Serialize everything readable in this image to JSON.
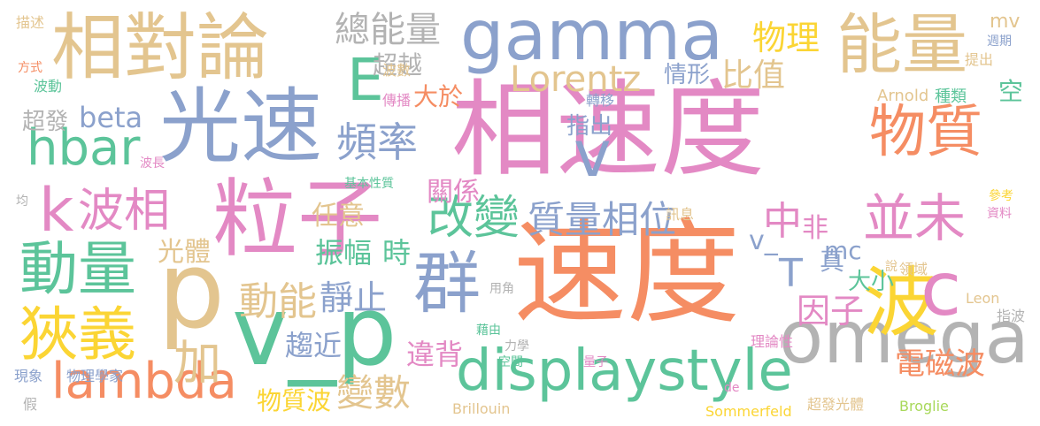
{
  "palette": {
    "orange": "#f58d63",
    "green": "#5cc49a",
    "blue": "#8ba1cc",
    "pink": "#e389c4",
    "lime": "#a8d85a",
    "yellow": "#fbd534",
    "tan": "#e3c58f",
    "gray": "#b3b3b3"
  },
  "words": [
    {
      "text": "速度",
      "color": "orange"
    },
    {
      "text": "相速度",
      "color": "pink"
    },
    {
      "text": "光速",
      "color": "blue"
    },
    {
      "text": "粒子",
      "color": "pink"
    },
    {
      "text": "相對論",
      "color": "tan"
    },
    {
      "text": "gamma",
      "color": "blue"
    },
    {
      "text": "能量",
      "color": "tan"
    },
    {
      "text": "omega",
      "color": "gray"
    },
    {
      "text": "波",
      "color": "yellow"
    },
    {
      "text": "p",
      "color": "tan"
    },
    {
      "text": "v_p",
      "color": "green"
    },
    {
      "text": "物質",
      "color": "orange"
    },
    {
      "text": "displaystyle",
      "color": "green"
    },
    {
      "text": "E",
      "color": "green"
    },
    {
      "text": "v",
      "color": "blue"
    },
    {
      "text": "群",
      "color": "blue"
    },
    {
      "text": "c",
      "color": "pink"
    },
    {
      "text": "狹義",
      "color": "yellow"
    },
    {
      "text": "動量",
      "color": "green"
    },
    {
      "text": "k",
      "color": "pink"
    },
    {
      "text": "波相",
      "color": "pink"
    },
    {
      "text": "hbar",
      "color": "green"
    },
    {
      "text": "lambda",
      "color": "orange"
    },
    {
      "text": "並未",
      "color": "pink"
    },
    {
      "text": "頻率",
      "color": "blue"
    },
    {
      "text": "改變",
      "color": "green"
    },
    {
      "text": "質量相位",
      "color": "blue"
    },
    {
      "text": "總能量",
      "color": "gray"
    },
    {
      "text": "Lorentz",
      "color": "tan"
    },
    {
      "text": "物理",
      "color": "yellow"
    },
    {
      "text": "比值",
      "color": "tan"
    },
    {
      "text": "中",
      "color": "pink"
    },
    {
      "text": "非",
      "color": "pink"
    },
    {
      "text": "T",
      "color": "blue"
    },
    {
      "text": "因子",
      "color": "pink"
    },
    {
      "text": "真",
      "color": "blue"
    },
    {
      "text": "大小",
      "color": "green"
    },
    {
      "text": "mc",
      "color": "blue"
    },
    {
      "text": "v_",
      "color": "blue"
    },
    {
      "text": "加",
      "color": "tan"
    },
    {
      "text": "動能",
      "color": "tan"
    },
    {
      "text": "靜止",
      "color": "blue"
    },
    {
      "text": "變數",
      "color": "tan"
    },
    {
      "text": "振幅",
      "color": "green"
    },
    {
      "text": "時",
      "color": "green"
    },
    {
      "text": "趨近",
      "color": "blue"
    },
    {
      "text": "違背",
      "color": "pink"
    },
    {
      "text": "物質波",
      "color": "yellow"
    },
    {
      "text": "電磁波",
      "color": "orange"
    },
    {
      "text": "超越",
      "color": "gray"
    },
    {
      "text": "情形",
      "color": "blue"
    },
    {
      "text": "大於",
      "color": "orange"
    },
    {
      "text": "指出",
      "color": "blue"
    },
    {
      "text": "超發",
      "color": "gray"
    },
    {
      "text": "beta",
      "color": "blue"
    },
    {
      "text": "關係",
      "color": "pink"
    },
    {
      "text": "任意",
      "color": "tan"
    },
    {
      "text": "光體",
      "color": "tan"
    },
    {
      "text": "mv",
      "color": "tan"
    },
    {
      "text": "空",
      "color": "green"
    },
    {
      "text": "描述",
      "color": "tan"
    },
    {
      "text": "方式",
      "color": "orange"
    },
    {
      "text": "波動",
      "color": "green"
    },
    {
      "text": "週期",
      "color": "blue"
    },
    {
      "text": "提出",
      "color": "tan"
    },
    {
      "text": "波數",
      "color": "tan"
    },
    {
      "text": "傳播",
      "color": "pink"
    },
    {
      "text": "轉移",
      "color": "blue"
    },
    {
      "text": "Arnold",
      "color": "tan"
    },
    {
      "text": "種類",
      "color": "green"
    },
    {
      "text": "波長",
      "color": "pink"
    },
    {
      "text": "基本性質",
      "color": "green"
    },
    {
      "text": "均",
      "color": "gray"
    },
    {
      "text": "參考",
      "color": "yellow"
    },
    {
      "text": "資料",
      "color": "pink"
    },
    {
      "text": "訊息",
      "color": "tan"
    },
    {
      "text": "說",
      "color": "tan"
    },
    {
      "text": "領域",
      "color": "tan"
    },
    {
      "text": "Leon",
      "color": "tan"
    },
    {
      "text": "指波",
      "color": "gray"
    },
    {
      "text": "用角",
      "color": "gray"
    },
    {
      "text": "藉由",
      "color": "green"
    },
    {
      "text": "理論性",
      "color": "pink"
    },
    {
      "text": "力學",
      "color": "gray"
    },
    {
      "text": "空間",
      "color": "green"
    },
    {
      "text": "量子",
      "color": "pink"
    },
    {
      "text": "現象",
      "color": "blue"
    },
    {
      "text": "物理學家",
      "color": "blue"
    },
    {
      "text": "假",
      "color": "gray"
    },
    {
      "text": "de",
      "color": "pink"
    },
    {
      "text": "Brillouin",
      "color": "tan"
    },
    {
      "text": "Sommerfeld",
      "color": "yellow"
    },
    {
      "text": "超發光體",
      "color": "tan"
    },
    {
      "text": "Broglie",
      "color": "lime"
    }
  ]
}
